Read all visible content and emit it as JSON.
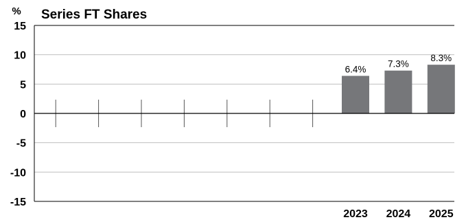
{
  "chart_data": {
    "type": "bar",
    "title": "Series FT Shares",
    "y_unit": "%",
    "ylim": [
      -15,
      15
    ],
    "y_ticks": [
      15,
      10,
      5,
      0,
      -5,
      -10,
      -15
    ],
    "y_tick_labels": [
      "15",
      "10",
      "5",
      "0",
      "-5",
      "-10",
      "-15"
    ],
    "grid": true,
    "legend": "none",
    "categories": [
      "",
      "",
      "",
      "",
      "",
      "",
      "",
      "2023",
      "2024",
      "2025"
    ],
    "values": [
      null,
      null,
      null,
      null,
      null,
      null,
      null,
      6.4,
      7.3,
      8.3
    ],
    "data_labels": [
      "",
      "",
      "",
      "",
      "",
      "",
      "",
      "6.4%",
      "7.3%",
      "8.3%"
    ],
    "bar_color": "#76777a",
    "grid_color": "#bfbfbf",
    "axis_color": "#000000"
  }
}
